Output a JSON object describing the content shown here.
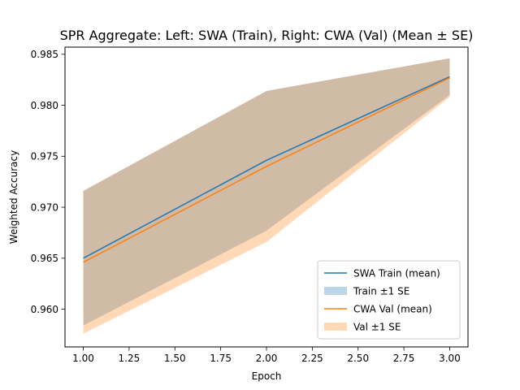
{
  "chart_data": {
    "type": "line",
    "title": "SPR Aggregate: Left: SWA (Train), Right: CWA (Val) (Mean ± SE)",
    "xlabel": "Epoch",
    "ylabel": "Weighted Accuracy",
    "x": [
      1,
      2,
      3
    ],
    "xlim": [
      0.9,
      3.1
    ],
    "ylim": [
      0.9563,
      0.9857
    ],
    "xticks": [
      1.0,
      1.25,
      1.5,
      1.75,
      2.0,
      2.25,
      2.5,
      2.75,
      3.0
    ],
    "xtick_labels": [
      "1.00",
      "1.25",
      "1.50",
      "1.75",
      "2.00",
      "2.25",
      "2.50",
      "2.75",
      "3.00"
    ],
    "yticks": [
      0.96,
      0.965,
      0.97,
      0.975,
      0.98,
      0.985
    ],
    "ytick_labels": [
      "0.960",
      "0.965",
      "0.970",
      "0.975",
      "0.980",
      "0.985"
    ],
    "grid": false,
    "legend_position": "lower-right",
    "series": [
      {
        "name": "SWA Train (mean)",
        "band_name": "Train ±1 SE",
        "color": "#1f77b4",
        "band_color": "#1f77b4",
        "band_opacity": 0.3,
        "mean": [
          0.965,
          0.9746,
          0.9828
        ],
        "lower": [
          0.9584,
          0.9677,
          0.981
        ],
        "upper": [
          0.9716,
          0.9814,
          0.9846
        ]
      },
      {
        "name": "CWA Val (mean)",
        "band_name": "Val ±1 SE",
        "color": "#ff7f0e",
        "band_color": "#ff7f0e",
        "band_opacity": 0.3,
        "mean": [
          0.9646,
          0.974,
          0.9827
        ],
        "lower": [
          0.9576,
          0.9666,
          0.9808
        ],
        "upper": [
          0.9716,
          0.9814,
          0.9846
        ]
      }
    ]
  }
}
